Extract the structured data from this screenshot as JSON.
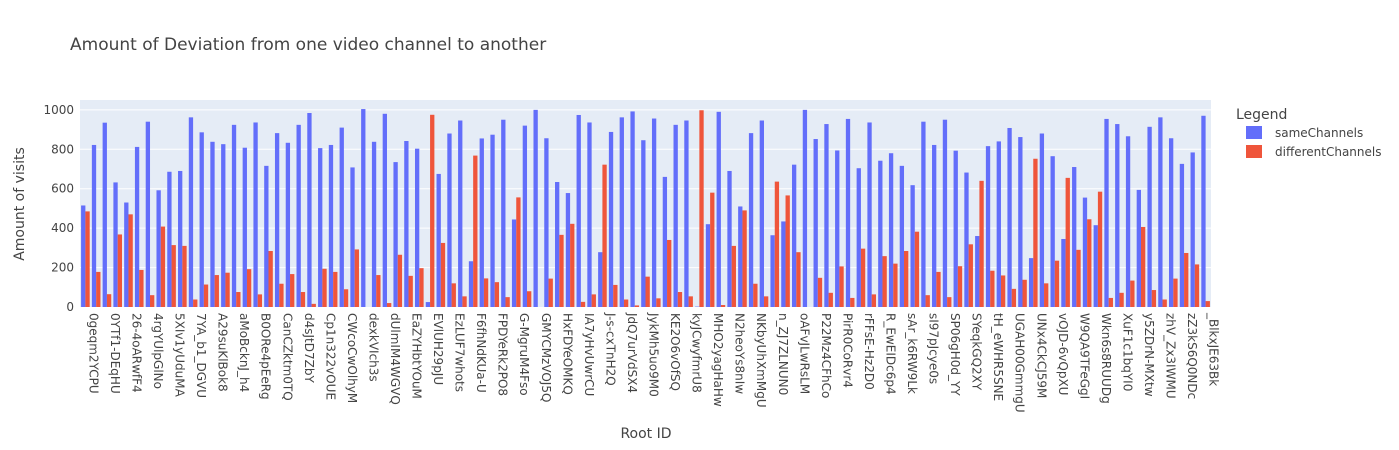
{
  "chart_data": {
    "type": "bar",
    "title": "Amount of Deviation from one video channel to another",
    "xlabel": "Root ID",
    "ylabel": "Amount of visits",
    "ylim": [
      0,
      1050
    ],
    "yticks": [
      0,
      200,
      400,
      600,
      800,
      1000
    ],
    "grid": true,
    "legend": {
      "title": "Legend",
      "placement": "right"
    },
    "categories": [
      "0geqm2YCPU",
      "",
      "0YTf1-DEqHU",
      "",
      "26-4oARwfF4",
      "",
      "4rgYUlpGlNo",
      "",
      "5XIv1yUduMA",
      "",
      "7YA_b1_DGVU",
      "",
      "A29suKlBok8",
      "",
      "aMoBcknJ_h4",
      "",
      "B0ORe4pEeRg",
      "",
      "CanCZktm0TQ",
      "",
      "d4sJtD7ZbY",
      "",
      "Cp1n322vOUE",
      "",
      "CWcoCwOlhyM",
      "",
      "dexkVIch3s",
      "",
      "dUlmIM4WGVQ",
      "",
      "EaZYHbtYOuM",
      "",
      "EVlUH29pJU",
      "",
      "EzLUF7whots",
      "",
      "F6fhNdKUa-U",
      "",
      "FPDYeRk2PO8",
      "",
      "G-MgruM4Fso",
      "",
      "GMYCMzVOJ5Q",
      "",
      "HxFDYeOMKQ",
      "",
      "IA7yHvUwrCU",
      "",
      "J-s-cxTnH2Q",
      "",
      "JdQ7urVdSX4",
      "",
      "JykMh5uo9M0",
      "",
      "KE2O6vOfSQ",
      "",
      "kyJCwyfmrU8",
      "",
      "MHO2yagHaHw",
      "",
      "N2heoYs8nIw",
      "",
      "NKbyUhXmMgU",
      "",
      "n_ZJ7ZLNUN0",
      "",
      "oAFvJLwRsLM",
      "",
      "P22Mz4CFhCo",
      "",
      "PirR0CoRvr4",
      "",
      "rFFsE-Hz2D0",
      "",
      "R_EwEIDc6p4",
      "",
      "sAr_k6RW9Lk",
      "",
      "sI97pJcye0s",
      "",
      "SP06gH0d_YY",
      "",
      "SYeqkGQ2XY",
      "",
      "tH_eWHR5SNE",
      "",
      "UGAH00GmmgU",
      "",
      "UNx4CkCJ59M",
      "",
      "vOJD-6vQpXU",
      "",
      "W9QA9TFeGgI",
      "",
      "Wkn6s8RUUDg",
      "",
      "XuF1c1bqYI0",
      "",
      "y5ZDrN-MXtw",
      "",
      "zhV_Zx3IWMU",
      "",
      "zZ3kS6Q0NDc",
      "",
      "_BlkxJE63Bk"
    ],
    "series": [
      {
        "name": "sameChannels",
        "color": "#636efa",
        "values": [
          515,
          822,
          935,
          632,
          530,
          812,
          940,
          592,
          686,
          690,
          962,
          886,
          838,
          826,
          924,
          808,
          936,
          716,
          882,
          833,
          924,
          984,
          806,
          822,
          910,
          708,
          1004,
          838,
          980,
          735,
          842,
          803,
          25,
          675,
          880,
          946,
          232,
          855,
          874,
          950,
          444,
          920,
          1000,
          856,
          634,
          578,
          974,
          936,
          278,
          888,
          962,
          992,
          846,
          956,
          660,
          924,
          946,
          2,
          420,
          990,
          690,
          510,
          882,
          946,
          364,
          434,
          722,
          1000,
          852,
          928,
          794,
          954,
          704,
          936,
          742,
          780,
          716,
          618,
          940,
          822,
          950,
          793,
          682,
          360,
          816,
          840,
          908,
          862,
          248,
          880,
          765,
          345,
          710,
          555,
          415,
          954,
          928,
          866,
          594,
          914,
          962,
          856,
          726,
          784,
          970
        ]
      },
      {
        "name": "differentChannels",
        "color": "#ef553b",
        "values": [
          485,
          178,
          65,
          368,
          470,
          188,
          60,
          408,
          314,
          310,
          38,
          114,
          162,
          174,
          76,
          192,
          64,
          284,
          118,
          167,
          76,
          16,
          194,
          178,
          90,
          292,
          0,
          162,
          20,
          265,
          158,
          197,
          975,
          325,
          120,
          54,
          768,
          145,
          126,
          50,
          556,
          80,
          0,
          144,
          366,
          422,
          26,
          64,
          722,
          112,
          38,
          8,
          154,
          44,
          340,
          76,
          54,
          998,
          580,
          10,
          310,
          490,
          118,
          54,
          636,
          566,
          278,
          0,
          148,
          72,
          206,
          46,
          296,
          64,
          258,
          220,
          284,
          382,
          60,
          178,
          50,
          207,
          318,
          640,
          184,
          160,
          92,
          138,
          752,
          120,
          235,
          655,
          290,
          445,
          585,
          46,
          72,
          134,
          406,
          86,
          38,
          144,
          274,
          216,
          30
        ]
      }
    ]
  }
}
